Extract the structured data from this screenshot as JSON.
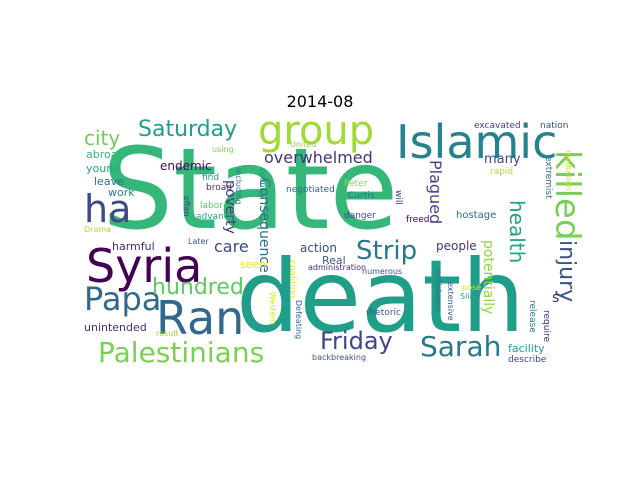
{
  "title": "2014-08",
  "words": [
    {
      "text": "State",
      "color": "#35b779"
    },
    {
      "text": "death",
      "color": "#1f9e89"
    },
    {
      "text": "Islamic",
      "color": "#26828e"
    },
    {
      "text": "group",
      "color": "#a0da39"
    },
    {
      "text": "Syria",
      "color": "#440154"
    },
    {
      "text": "Ran",
      "color": "#31688e"
    },
    {
      "text": "ha",
      "color": "#3e4989"
    },
    {
      "text": "Papa",
      "color": "#31688e"
    },
    {
      "text": "Palestinians",
      "color": "#7ad151"
    },
    {
      "text": "Sarah",
      "color": "#2a788e"
    },
    {
      "text": "killed",
      "color": "#75d054"
    },
    {
      "text": "Strip",
      "color": "#2a788e"
    },
    {
      "text": "Friday",
      "color": "#404688"
    },
    {
      "text": "Saturday",
      "color": "#1f9e89"
    },
    {
      "text": "hundred",
      "color": "#5ec962"
    },
    {
      "text": "injury",
      "color": "#3b528b"
    },
    {
      "text": "health",
      "color": "#20a486"
    },
    {
      "text": "city",
      "color": "#6ece58"
    },
    {
      "text": "overwhelmed",
      "color": "#46327e"
    },
    {
      "text": "care",
      "color": "#3e4989"
    },
    {
      "text": "Plagued",
      "color": "#404688"
    },
    {
      "text": "potentially",
      "color": "#8fd744"
    },
    {
      "text": "Consequence",
      "color": "#2c728e"
    },
    {
      "text": "poverty",
      "color": "#443983"
    },
    {
      "text": "endemic",
      "color": "#46085c"
    },
    {
      "text": "abroad",
      "color": "#35b779"
    },
    {
      "text": "young",
      "color": "#22a884"
    },
    {
      "text": "leave",
      "color": "#2c728e"
    },
    {
      "text": "work",
      "color": "#277f8e"
    },
    {
      "text": "harmful",
      "color": "#482878"
    },
    {
      "text": "unintended",
      "color": "#472c7a"
    },
    {
      "text": "people",
      "color": "#46337e"
    },
    {
      "text": "action",
      "color": "#3e4a89"
    },
    {
      "text": "Real",
      "color": "#375a8c"
    },
    {
      "text": "facility",
      "color": "#1fa088"
    },
    {
      "text": "many",
      "color": "#3f4889"
    },
    {
      "text": "s",
      "color": "#482677"
    },
    {
      "text": "seen",
      "color": "#e7e419"
    },
    {
      "text": "nation",
      "color": "#3e4c8a"
    },
    {
      "text": "excavated",
      "color": "#433e85"
    },
    {
      "text": "rapid",
      "color": "#b8de29"
    },
    {
      "text": "mediation",
      "color": "#c2df23"
    },
    {
      "text": "extremist",
      "color": "#2c728e"
    },
    {
      "text": "hostage",
      "color": "#31688e"
    },
    {
      "text": "freed",
      "color": "#440154"
    },
    {
      "text": "will",
      "color": "#443a83"
    },
    {
      "text": "Peter",
      "color": "#93d741"
    },
    {
      "text": "Curtis",
      "color": "#2d718e"
    },
    {
      "text": "danger",
      "color": "#3d4d8a"
    },
    {
      "text": "negotiated",
      "color": "#33638d"
    },
    {
      "text": "find",
      "color": "#1e9b8a"
    },
    {
      "text": "broad",
      "color": "#472f7d"
    },
    {
      "text": "labor",
      "color": "#5cc863"
    },
    {
      "text": "advance",
      "color": "#22a884"
    },
    {
      "text": "Drama",
      "color": "#a8db34"
    },
    {
      "text": "Later",
      "color": "#3b528b"
    },
    {
      "text": "using",
      "color": "#7fd34e"
    },
    {
      "text": "including",
      "color": "#2a768e"
    },
    {
      "text": "country",
      "color": "#20928c"
    },
    {
      "text": "often",
      "color": "#453781"
    },
    {
      "text": "United",
      "color": "#8bd646"
    },
    {
      "text": "coalition",
      "color": "#e5e419"
    },
    {
      "text": "numerous",
      "color": "#3b528b"
    },
    {
      "text": "administration",
      "color": "#472d7b"
    },
    {
      "text": "Western",
      "color": "#e2e418"
    },
    {
      "text": "Defeating",
      "color": "#2f6c8e"
    },
    {
      "text": "rhetoric",
      "color": "#38588c"
    },
    {
      "text": "result",
      "color": "#99d83d"
    },
    {
      "text": "backbreaking",
      "color": "#3b518b"
    },
    {
      "text": "assistance",
      "color": "#2f6b8e"
    },
    {
      "text": "extensive",
      "color": "#39568c"
    },
    {
      "text": "pose",
      "color": "#d8e219"
    },
    {
      "text": "Slin",
      "color": "#27ad81"
    },
    {
      "text": "release",
      "color": "#277f8e"
    },
    {
      "text": "require",
      "color": "#472f7d"
    },
    {
      "text": "describe",
      "color": "#3f4788"
    }
  ]
}
